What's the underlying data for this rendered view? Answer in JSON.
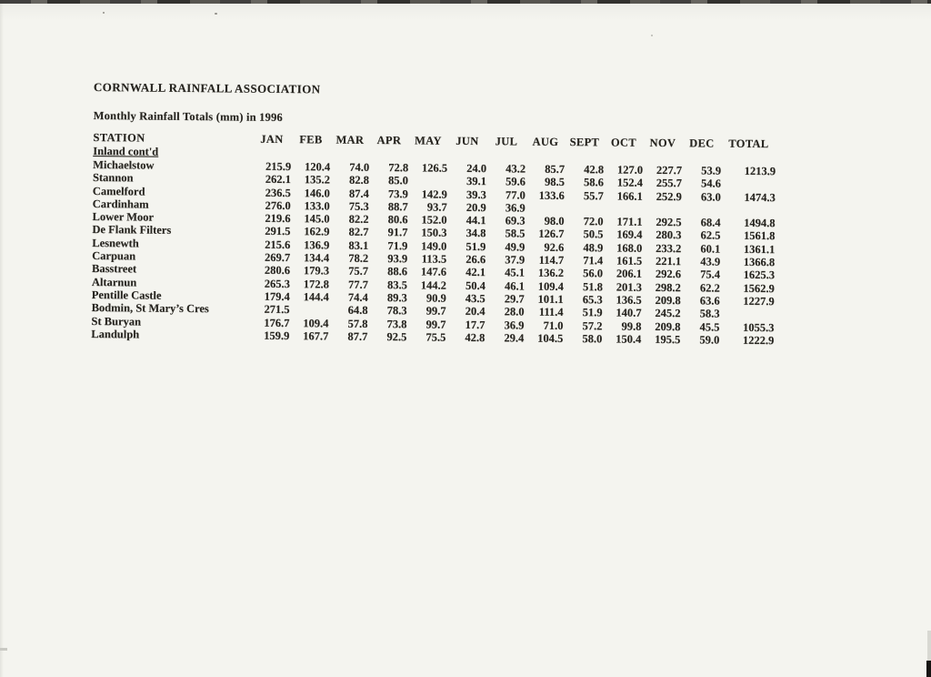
{
  "colors": {
    "paper": "#f4f4ef",
    "ink": "#26241f",
    "scanner_edge": "#2e2d2b"
  },
  "document": {
    "title": "CORNWALL RAINFALL ASSOCIATION",
    "subtitle": "Monthly Rainfall Totals (mm) in 1996",
    "section_label": "Inland cont'd",
    "table": {
      "station_header": "STATION",
      "columns": [
        "JAN",
        "FEB",
        "MAR",
        "APR",
        "MAY",
        "JUN",
        "JUL",
        "AUG",
        "SEPT",
        "OCT",
        "NOV",
        "DEC",
        "TOTAL"
      ],
      "rows": [
        {
          "station": "Michaelstow",
          "values": [
            "215.9",
            "120.4",
            "74.0",
            "72.8",
            "126.5",
            "24.0",
            "43.2",
            "85.7",
            "42.8",
            "127.0",
            "227.7",
            "53.9",
            "1213.9"
          ]
        },
        {
          "station": "Stannon",
          "values": [
            "262.1",
            "135.2",
            "82.8",
            "85.0",
            "",
            "39.1",
            "59.6",
            "98.5",
            "58.6",
            "152.4",
            "255.7",
            "54.6",
            ""
          ]
        },
        {
          "station": "Camelford",
          "values": [
            "236.5",
            "146.0",
            "87.4",
            "73.9",
            "142.9",
            "39.3",
            "77.0",
            "133.6",
            "55.7",
            "166.1",
            "252.9",
            "63.0",
            "1474.3"
          ]
        },
        {
          "station": "Cardinham",
          "values": [
            "276.0",
            "133.0",
            "75.3",
            "88.7",
            "93.7",
            "20.9",
            "36.9",
            "",
            "",
            "",
            "",
            "",
            ""
          ]
        },
        {
          "station": "Lower Moor",
          "values": [
            "219.6",
            "145.0",
            "82.2",
            "80.6",
            "152.0",
            "44.1",
            "69.3",
            "98.0",
            "72.0",
            "171.1",
            "292.5",
            "68.4",
            "1494.8"
          ]
        },
        {
          "station": "De Flank Filters",
          "values": [
            "291.5",
            "162.9",
            "82.7",
            "91.7",
            "150.3",
            "34.8",
            "58.5",
            "126.7",
            "50.5",
            "169.4",
            "280.3",
            "62.5",
            "1561.8"
          ]
        },
        {
          "station": "Lesnewth",
          "values": [
            "215.6",
            "136.9",
            "83.1",
            "71.9",
            "149.0",
            "51.9",
            "49.9",
            "92.6",
            "48.9",
            "168.0",
            "233.2",
            "60.1",
            "1361.1"
          ]
        },
        {
          "station": "Carpuan",
          "values": [
            "269.7",
            "134.4",
            "78.2",
            "93.9",
            "113.5",
            "26.6",
            "37.9",
            "114.7",
            "71.4",
            "161.5",
            "221.1",
            "43.9",
            "1366.8"
          ]
        },
        {
          "station": "Basstreet",
          "values": [
            "280.6",
            "179.3",
            "75.7",
            "88.6",
            "147.6",
            "42.1",
            "45.1",
            "136.2",
            "56.0",
            "206.1",
            "292.6",
            "75.4",
            "1625.3"
          ]
        },
        {
          "station": "Altarnun",
          "values": [
            "265.3",
            "172.8",
            "77.7",
            "83.5",
            "144.2",
            "50.4",
            "46.1",
            "109.4",
            "51.8",
            "201.3",
            "298.2",
            "62.2",
            "1562.9"
          ]
        },
        {
          "station": "Pentille Castle",
          "values": [
            "179.4",
            "144.4",
            "74.4",
            "89.3",
            "90.9",
            "43.5",
            "29.7",
            "101.1",
            "65.3",
            "136.5",
            "209.8",
            "63.6",
            "1227.9"
          ]
        },
        {
          "station": "Bodmin, St Mary’s Cres",
          "values": [
            "271.5",
            "",
            "64.8",
            "78.3",
            "99.7",
            "20.4",
            "28.0",
            "111.4",
            "51.9",
            "140.7",
            "245.2",
            "58.3",
            ""
          ]
        },
        {
          "station": "St Buryan",
          "values": [
            "176.7",
            "109.4",
            "57.8",
            "73.8",
            "99.7",
            "17.7",
            "36.9",
            "71.0",
            "57.2",
            "99.8",
            "209.8",
            "45.5",
            "1055.3"
          ]
        },
        {
          "station": "Landulph",
          "values": [
            "159.9",
            "167.7",
            "87.7",
            "92.5",
            "75.5",
            "42.8",
            "29.4",
            "104.5",
            "58.0",
            "150.4",
            "195.5",
            "59.0",
            "1222.9"
          ]
        }
      ]
    }
  }
}
